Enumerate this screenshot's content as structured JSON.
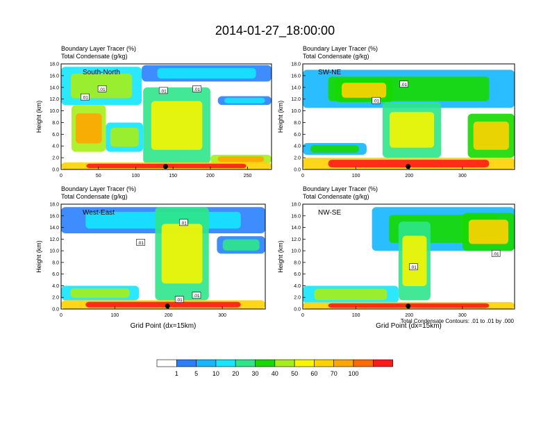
{
  "title": "2014-01-27_18:00:00",
  "footer_note": "Total Condensate Contours: .01 to .01 by .000",
  "colorbar": {
    "colors": [
      "#ffffff",
      "#2a7fff",
      "#13b6ff",
      "#15e6ff",
      "#2ee68a",
      "#16d900",
      "#a6ee1a",
      "#f7f500",
      "#ffd200",
      "#ffa500",
      "#ff6a00",
      "#ff1a1a"
    ],
    "labels": [
      "1",
      "5",
      "10",
      "20",
      "30",
      "40",
      "50",
      "60",
      "70",
      "100"
    ]
  },
  "chart_data": [
    {
      "type": "heatmap",
      "header_line1": "Boundary Layer Tracer   (%)",
      "header_line2": "Total Condensate   (g/kg)",
      "panel_label": "South-North",
      "ylabel": "Height (km)",
      "xlabel": "",
      "xlim": [
        0,
        282
      ],
      "ylim": [
        0,
        18
      ],
      "xticks": [
        0,
        50,
        100,
        150,
        200,
        250
      ],
      "yticks": [
        0.0,
        2.0,
        4.0,
        6.0,
        8.0,
        10.0,
        12.0,
        14.0,
        16.0,
        18.0
      ],
      "marker_x": 140,
      "contour_labels": [
        {
          "text": ".01",
          "x": 32,
          "y": 12.3
        },
        {
          "text": ".01",
          "x": 55,
          "y": 13.7
        },
        {
          "text": ".01",
          "x": 137,
          "y": 13.4
        },
        {
          "text": ".01",
          "x": 182,
          "y": 13.7
        }
      ],
      "features": [
        {
          "x0": 0,
          "x1": 108,
          "y0": 11.0,
          "y1": 17.5,
          "level": 6
        },
        {
          "x0": 108,
          "x1": 282,
          "y0": 15.0,
          "y1": 17.8,
          "level": 3
        },
        {
          "x0": 210,
          "x1": 282,
          "y0": 11.0,
          "y1": 12.5,
          "level": 3
        },
        {
          "x0": 14,
          "x1": 60,
          "y0": 3.0,
          "y1": 11.0,
          "level": 9
        },
        {
          "x0": 60,
          "x1": 110,
          "y0": 3.0,
          "y1": 8.0,
          "level": 6
        },
        {
          "x0": 110,
          "x1": 200,
          "y0": 1.0,
          "y1": 14.0,
          "level": 7
        },
        {
          "x0": 200,
          "x1": 282,
          "y0": 1.0,
          "y1": 2.5,
          "level": 9
        },
        {
          "x0": 0,
          "x1": 282,
          "y0": 0.0,
          "y1": 1.2,
          "level": 11
        }
      ]
    },
    {
      "type": "heatmap",
      "header_line1": "Boundary Layer Tracer   (%)",
      "header_line2": "Total Condensate   (g/kg)",
      "panel_label": "SW-NE",
      "ylabel": "Height (km)",
      "xlabel": "",
      "xlim": [
        0,
        398
      ],
      "ylim": [
        0,
        18
      ],
      "xticks": [
        0,
        100,
        200,
        300
      ],
      "yticks": [
        0.0,
        2.0,
        4.0,
        6.0,
        8.0,
        10.0,
        12.0,
        14.0,
        16.0,
        18.0
      ],
      "marker_x": 198,
      "contour_labels": [
        {
          "text": ".01",
          "x": 190,
          "y": 14.5
        },
        {
          "text": ".01",
          "x": 138,
          "y": 11.7
        }
      ],
      "features": [
        {
          "x0": 0,
          "x1": 398,
          "y0": 10.5,
          "y1": 17.0,
          "level": 5
        },
        {
          "x0": 60,
          "x1": 170,
          "y0": 11.5,
          "y1": 15.5,
          "level": 8
        },
        {
          "x0": 310,
          "x1": 398,
          "y0": 2.0,
          "y1": 9.5,
          "level": 8
        },
        {
          "x0": 150,
          "x1": 260,
          "y0": 2.0,
          "y1": 11.5,
          "level": 7
        },
        {
          "x0": 0,
          "x1": 120,
          "y0": 2.5,
          "y1": 4.5,
          "level": 5
        },
        {
          "x0": 0,
          "x1": 398,
          "y0": 0.0,
          "y1": 2.0,
          "level": 11
        }
      ]
    },
    {
      "type": "heatmap",
      "header_line1": "Boundary Layer Tracer   (%)",
      "header_line2": "Total Condensate   (g/kg)",
      "panel_label": "West-East",
      "ylabel": "Height (km)",
      "xlabel": "Grid Point (dx=15km)",
      "xlim": [
        0,
        380
      ],
      "ylim": [
        0,
        18
      ],
      "xticks": [
        0,
        100,
        200,
        300
      ],
      "yticks": [
        0.0,
        2.0,
        4.0,
        6.0,
        8.0,
        10.0,
        12.0,
        14.0,
        16.0,
        18.0
      ],
      "marker_x": 198,
      "contour_labels": [
        {
          "text": ".01",
          "x": 228,
          "y": 14.8
        },
        {
          "text": ".01",
          "x": 148,
          "y": 11.4
        },
        {
          "text": ".01",
          "x": 220,
          "y": 1.6
        },
        {
          "text": ".01",
          "x": 252,
          "y": 2.3
        }
      ],
      "features": [
        {
          "x0": 0,
          "x1": 380,
          "y0": 13.0,
          "y1": 17.5,
          "level": 3
        },
        {
          "x0": 290,
          "x1": 380,
          "y0": 9.5,
          "y1": 12.5,
          "level": 4
        },
        {
          "x0": 175,
          "x1": 275,
          "y0": 1.5,
          "y1": 17.5,
          "level": 7
        },
        {
          "x0": 0,
          "x1": 145,
          "y0": 1.5,
          "y1": 4.0,
          "level": 6
        },
        {
          "x0": 0,
          "x1": 380,
          "y0": 0.0,
          "y1": 1.5,
          "level": 11
        }
      ]
    },
    {
      "type": "heatmap",
      "header_line1": "Boundary Layer Tracer   (%)",
      "header_line2": "Total Condensate   (g/kg)",
      "panel_label": "NW-SE",
      "ylabel": "Height (km)",
      "xlabel": "Grid Point (dx=15km)",
      "xlim": [
        0,
        398
      ],
      "ylim": [
        0,
        18
      ],
      "xticks": [
        0,
        100,
        200,
        300
      ],
      "yticks": [
        0.0,
        2.0,
        4.0,
        6.0,
        8.0,
        10.0,
        12.0,
        14.0,
        16.0,
        18.0
      ],
      "marker_x": 198,
      "contour_labels": [
        {
          "text": ".01",
          "x": 208,
          "y": 7.2
        },
        {
          "text": ".01",
          "x": 363,
          "y": 9.5
        }
      ],
      "features": [
        {
          "x0": 130,
          "x1": 398,
          "y0": 10.0,
          "y1": 17.5,
          "level": 5
        },
        {
          "x0": 300,
          "x1": 398,
          "y0": 10.0,
          "y1": 16.5,
          "level": 8
        },
        {
          "x0": 180,
          "x1": 240,
          "y0": 1.5,
          "y1": 15.0,
          "level": 7
        },
        {
          "x0": 0,
          "x1": 180,
          "y0": 1.0,
          "y1": 4.0,
          "level": 6
        },
        {
          "x0": 0,
          "x1": 398,
          "y0": 0.0,
          "y1": 1.2,
          "level": 11
        }
      ]
    }
  ]
}
